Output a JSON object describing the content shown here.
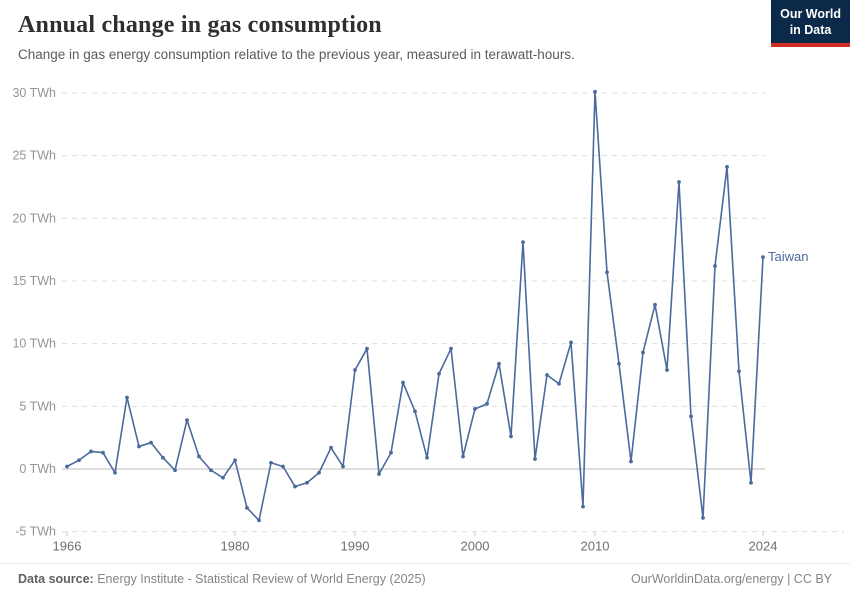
{
  "header": {
    "title": "Annual change in gas consumption",
    "subtitle": "Change in gas energy consumption relative to the previous year, measured in terawatt-hours."
  },
  "logo": {
    "line1": "Our World",
    "line2": "in Data"
  },
  "colors": {
    "line": "#4C6A9C",
    "entity_label": "#4C6A9C",
    "grid": "#dcdcdc",
    "zero_line": "#bcbcbc",
    "tick": "#c9c9c9",
    "y_tick_text": "#949494",
    "x_tick_text": "#6f6f6f",
    "logo_bg": "#0b2948",
    "logo_accent": "#cf2d24"
  },
  "chart_data": {
    "type": "line",
    "title": "Annual change in gas consumption",
    "xlabel": "",
    "ylabel": "",
    "unit": "TWh",
    "xlim": [
      1966,
      2024
    ],
    "ylim": [
      -5,
      30
    ],
    "grid": "horizontal-dashed",
    "legend_position": "end-of-line-label",
    "entity_label": "Taiwan",
    "x_ticks": [
      1966,
      1980,
      1990,
      2000,
      2010,
      2024
    ],
    "y_ticks": [
      30,
      25,
      20,
      15,
      10,
      5,
      0,
      -5
    ],
    "y_tick_suffix": " TWh",
    "series": [
      {
        "name": "Taiwan",
        "color": "#4C6A9C",
        "x": [
          1966,
          1967,
          1968,
          1969,
          1970,
          1971,
          1972,
          1973,
          1974,
          1975,
          1976,
          1977,
          1978,
          1979,
          1980,
          1981,
          1982,
          1983,
          1984,
          1985,
          1986,
          1987,
          1988,
          1989,
          1990,
          1991,
          1992,
          1993,
          1994,
          1995,
          1996,
          1997,
          1998,
          1999,
          2000,
          2001,
          2002,
          2003,
          2004,
          2005,
          2006,
          2007,
          2008,
          2009,
          2010,
          2011,
          2012,
          2013,
          2014,
          2015,
          2016,
          2017,
          2018,
          2019,
          2020,
          2021,
          2022,
          2023,
          2024
        ],
        "values": [
          0.2,
          0.7,
          1.4,
          1.3,
          -0.3,
          5.7,
          1.8,
          2.1,
          0.9,
          -0.1,
          3.9,
          1.0,
          -0.1,
          -0.7,
          0.7,
          -3.1,
          -4.1,
          0.5,
          0.2,
          -1.4,
          -1.1,
          -0.3,
          1.7,
          0.2,
          7.9,
          9.6,
          -0.4,
          1.3,
          6.9,
          4.6,
          0.9,
          7.6,
          9.6,
          1.0,
          4.8,
          5.2,
          8.4,
          2.6,
          18.1,
          0.8,
          7.5,
          6.8,
          10.1,
          -3.0,
          30.1,
          15.7,
          8.4,
          0.6,
          9.3,
          13.1,
          7.9,
          22.9,
          4.2,
          -3.9,
          16.2,
          24.1,
          7.8,
          -1.1,
          16.9
        ]
      }
    ]
  },
  "footer": {
    "source_label": "Data source:",
    "source_text": "Energy Institute - Statistical Review of World Energy (2025)",
    "credit": "OurWorldinData.org/energy | CC BY"
  }
}
